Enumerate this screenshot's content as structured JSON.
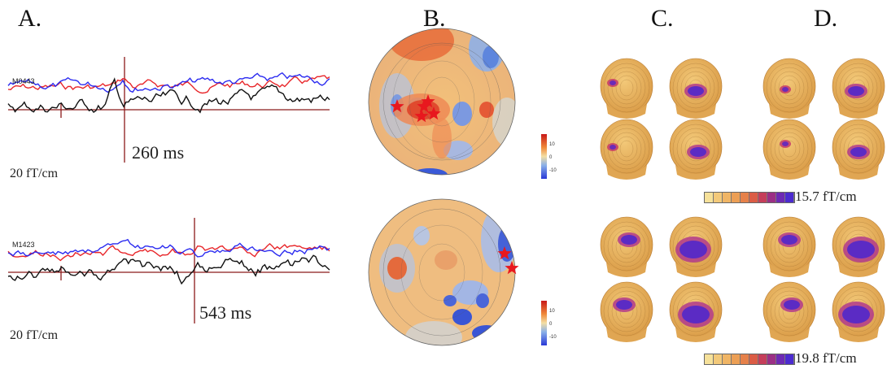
{
  "panels": {
    "a": "A.",
    "b": "B.",
    "c": "C.",
    "d": "D."
  },
  "waveforms": [
    {
      "channel": "M0443",
      "latency": "260 ms",
      "scale": "20 fT/cm"
    },
    {
      "channel": "M1423",
      "latency": "543 ms",
      "scale": "20 fT/cm"
    }
  ],
  "topo_colorbar": {
    "ticks": [
      "10",
      "0",
      "-10"
    ]
  },
  "head_colorbars": [
    {
      "label": "15.7 fT/cm"
    },
    {
      "label": "19.8 fT/cm"
    }
  ],
  "colors": {
    "red_trace": "#e8262a",
    "blue_trace": "#2b2bf0",
    "black_trace": "#111111",
    "marker_line": "#8b1a1a",
    "star": "#e8181e",
    "head_base": "#e9b45a",
    "head_hot": "#5b2bc4"
  }
}
